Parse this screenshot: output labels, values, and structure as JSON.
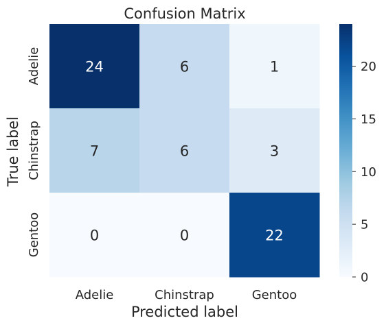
{
  "chart_data": {
    "type": "heatmap",
    "title": "Confusion Matrix",
    "xlabel": "Predicted label",
    "ylabel": "True label",
    "x_categories": [
      "Adelie",
      "Chinstrap",
      "Gentoo"
    ],
    "y_categories": [
      "Adelie",
      "Chinstrap",
      "Gentoo"
    ],
    "values": [
      [
        24,
        6,
        1
      ],
      [
        7,
        6,
        3
      ],
      [
        0,
        0,
        22
      ]
    ],
    "colormap": "Blues",
    "colorbar": {
      "vmin": 0,
      "vmax": 24,
      "ticks": [
        0,
        5,
        10,
        15,
        20
      ],
      "tick_labels": [
        "0",
        "5",
        "10",
        "15",
        "20"
      ]
    },
    "colors": {
      "min": "#f7fbff",
      "max": "#08306b",
      "text_dark": "#262626",
      "text_light": "#ffffff"
    }
  }
}
